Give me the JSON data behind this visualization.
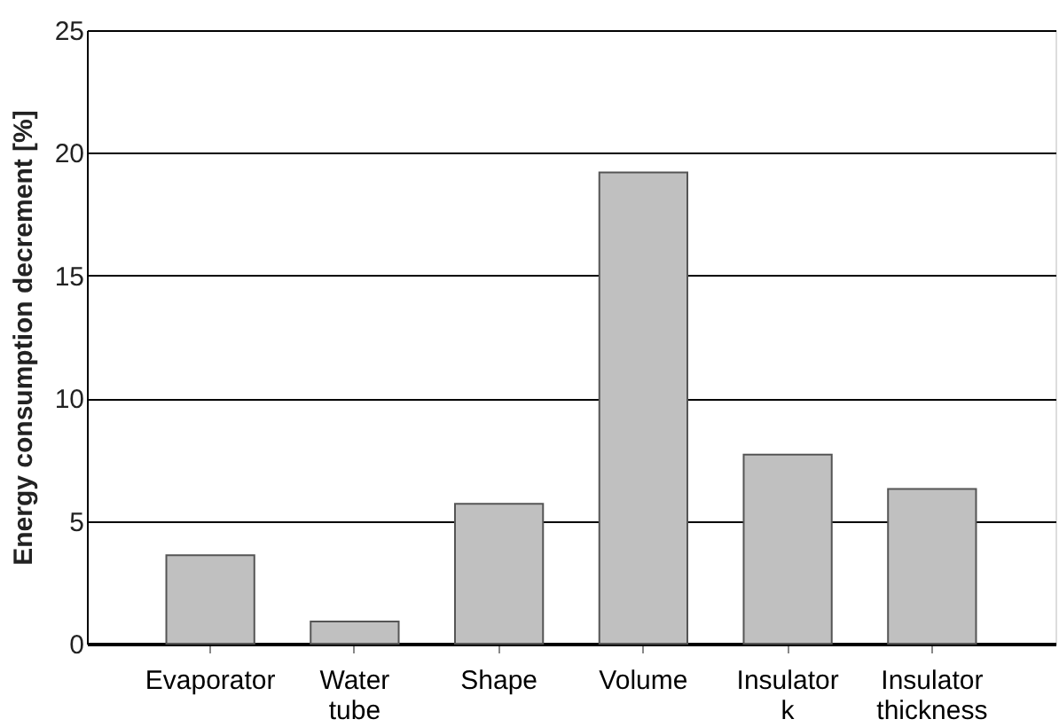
{
  "chart_data": {
    "type": "bar",
    "ylabel": "Energy consumption decrement [%]",
    "categories": [
      "Evaporator",
      "Water tube",
      "Shape",
      "Volume",
      "Insulator k",
      "Insulator thickness"
    ],
    "values": [
      3.6,
      0.9,
      5.7,
      19.2,
      7.7,
      6.3
    ],
    "color": "#c0c0c0",
    "ylim": [
      0,
      25
    ],
    "yticks": [
      0,
      5,
      10,
      15,
      20,
      25
    ],
    "grid": "y"
  }
}
